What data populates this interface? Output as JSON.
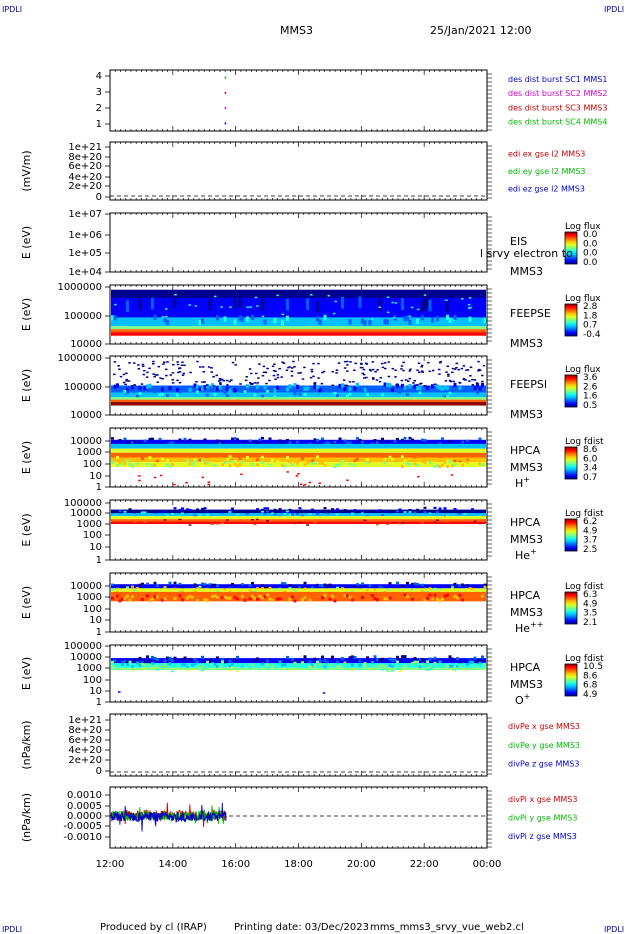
{
  "header": {
    "corner_left": "IPDLI",
    "corner_right": "IPDLI",
    "title": "MMS3",
    "datetime": "25/Jan/2021 12:00"
  },
  "footer": {
    "produced_by": "Produced by cl (IRAP)",
    "printing_date": "Printing date: 03/Dec/2023",
    "filename": "mms_mms3_srvy_vue_web2.cl",
    "corner_left": "IPDLI",
    "corner_right": "IPDLI"
  },
  "colors": {
    "mms1": "#0000cc",
    "mms2": "#cc00cc",
    "mms3": "#cc0000",
    "mms4": "#00bb00",
    "x": "#cc0000",
    "y": "#00bb00",
    "z": "#0000cc"
  },
  "chart_data": [
    {
      "type": "scatter",
      "panel": "burst",
      "ylabel": "",
      "yticks": [
        "1",
        "2",
        "3",
        "4"
      ],
      "ylim": [
        0.5,
        4.5
      ],
      "legend": [
        {
          "label": "des dist burst SC1 MMS1",
          "color": "#0000cc"
        },
        {
          "label": "des dist burst SC2 MMS2",
          "color": "#cc00cc"
        },
        {
          "label": "des dist burst SC3 MMS3",
          "color": "#cc0000"
        },
        {
          "label": "des dist burst SC4 MMS4",
          "color": "#00bb00"
        }
      ],
      "points": [
        {
          "t": 15.65,
          "y": 1,
          "color": "#0000cc"
        },
        {
          "t": 15.65,
          "y": 2,
          "color": "#cc00cc"
        },
        {
          "t": 15.65,
          "y": 3,
          "color": "#cc0000"
        },
        {
          "t": 15.65,
          "y": 4,
          "color": "#00bb00"
        }
      ]
    },
    {
      "type": "line",
      "panel": "edi",
      "ylabel": "(mV/m)",
      "yticks": [
        "0",
        "2e+20",
        "4e+20",
        "6e+20",
        "8e+20",
        "1e+21"
      ],
      "ylim": [
        0,
        1e+21
      ],
      "legend": [
        {
          "label": "edi ex gse l2 MMS3",
          "color": "#cc0000"
        },
        {
          "label": "edi ey gse l2 MMS3",
          "color": "#00bb00"
        },
        {
          "label": "edi ez gse l2 MMS3",
          "color": "#0000cc"
        }
      ]
    },
    {
      "type": "heatmap",
      "panel": "eis",
      "ylabel": "E (eV)",
      "yticks": [
        "1e+04",
        "1e+05",
        "1e+06",
        "1e+07"
      ],
      "ylim": [
        10000.0,
        10000000.0
      ],
      "instrument": [
        "EIS",
        "MMS3"
      ],
      "overlay_text": "l srvy electron to",
      "colorbar": {
        "title": "Log flux",
        "ticks": [
          "0.0",
          "0.0",
          "0.0",
          "0.0"
        ]
      }
    },
    {
      "type": "heatmap",
      "panel": "feepse",
      "ylabel": "E (eV)",
      "yticks": [
        "10000",
        "100000",
        "1000000"
      ],
      "ylim": [
        10000,
        1000000
      ],
      "instrument": [
        "FEEPSE",
        "MMS3"
      ],
      "colorbar": {
        "title": "Log flux",
        "ticks": [
          "2.8",
          "1.8",
          "0.7",
          "-0.4"
        ]
      }
    },
    {
      "type": "heatmap",
      "panel": "feepsi",
      "ylabel": "E (eV)",
      "yticks": [
        "10000",
        "100000",
        "1000000"
      ],
      "ylim": [
        10000,
        1000000
      ],
      "instrument": [
        "FEEPSI",
        "MMS3"
      ],
      "colorbar": {
        "title": "Log flux",
        "ticks": [
          "3.6",
          "2.6",
          "1.6",
          "0.5"
        ]
      }
    },
    {
      "type": "heatmap",
      "panel": "hpca_h",
      "ylabel": "E (eV)",
      "yticks": [
        "1",
        "10",
        "100",
        "1000",
        "10000"
      ],
      "ylim": [
        1,
        20000
      ],
      "instrument": [
        "HPCA",
        "MMS3",
        "H+"
      ],
      "colorbar": {
        "title": "Log fdist",
        "ticks": [
          "8.6",
          "6.0",
          "3.4",
          "0.7"
        ]
      }
    },
    {
      "type": "heatmap",
      "panel": "hpca_he",
      "ylabel": "E (eV)",
      "yticks": [
        "1",
        "10",
        "100",
        "1000",
        "10000",
        "100000"
      ],
      "ylim": [
        1,
        100000
      ],
      "instrument": [
        "HPCA",
        "MMS3",
        "He+"
      ],
      "colorbar": {
        "title": "Log fdist",
        "ticks": [
          "6.2",
          "4.9",
          "3.7",
          "2.5"
        ]
      }
    },
    {
      "type": "heatmap",
      "panel": "hpca_hepp",
      "ylabel": "E (eV)",
      "yticks": [
        "1",
        "10",
        "100",
        "1000",
        "10000"
      ],
      "ylim": [
        1,
        10000
      ],
      "instrument": [
        "HPCA",
        "MMS3",
        "He++"
      ],
      "colorbar": {
        "title": "Log fdist",
        "ticks": [
          "6.3",
          "4.9",
          "3.5",
          "2.1"
        ]
      }
    },
    {
      "type": "heatmap",
      "panel": "hpca_o",
      "ylabel": "E (eV)",
      "yticks": [
        "1",
        "10",
        "100",
        "1000",
        "10000",
        "100000"
      ],
      "ylim": [
        1,
        100000
      ],
      "instrument": [
        "HPCA",
        "MMS3",
        "O+"
      ],
      "colorbar": {
        "title": "Log fdist",
        "ticks": [
          "10.5",
          "8.6",
          "6.8",
          "4.9"
        ]
      }
    },
    {
      "type": "line",
      "panel": "divpe",
      "ylabel": "(nPa/km)",
      "yticks": [
        "0",
        "2e+20",
        "4e+20",
        "6e+20",
        "8e+20",
        "1e+21"
      ],
      "ylim": [
        0,
        1e+21
      ],
      "legend": [
        {
          "label": "divPe x gse MMS3",
          "color": "#cc0000"
        },
        {
          "label": "divPe y gse MMS3",
          "color": "#00bb00"
        },
        {
          "label": "divPe z gse MMS3",
          "color": "#0000cc"
        }
      ]
    },
    {
      "type": "line",
      "panel": "divpi",
      "ylabel": "(nPa/km)",
      "yticks": [
        "-0.0010",
        "-0.0005",
        "0.0000",
        "0.0005",
        "0.0010"
      ],
      "ylim": [
        -0.0015,
        0.0012
      ],
      "legend": [
        {
          "label": "divPi x gse MMS3",
          "color": "#cc0000"
        },
        {
          "label": "divPi y gse MMS3",
          "color": "#00bb00"
        },
        {
          "label": "divPi z gse MMS3",
          "color": "#0000cc"
        }
      ],
      "data_span_hours": [
        12.0,
        15.7
      ]
    }
  ],
  "xaxis": {
    "ticks": [
      "12:00",
      "14:00",
      "16:00",
      "18:00",
      "20:00",
      "22:00",
      "00:00"
    ],
    "xlim_hours": [
      12,
      24
    ]
  }
}
